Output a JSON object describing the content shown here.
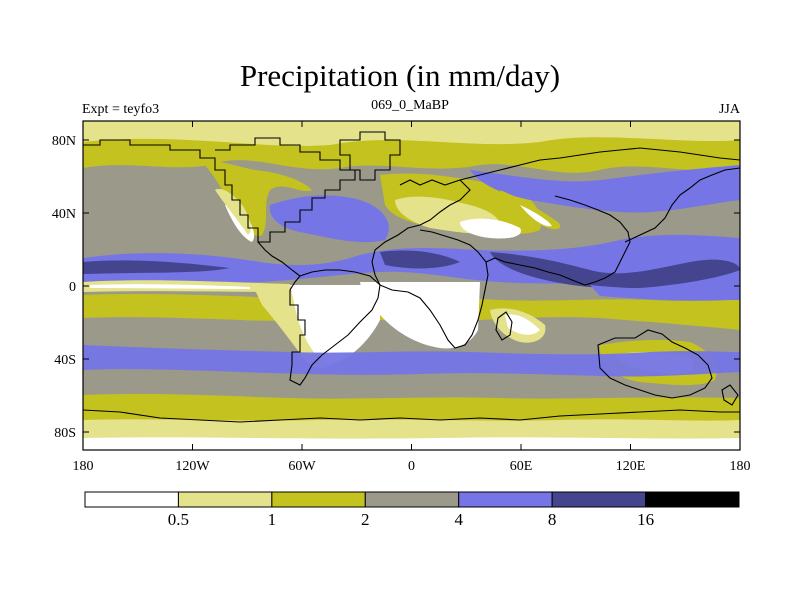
{
  "header": {
    "title": "Precipitation (in mm/day)",
    "left_label": "Expt = teyfo3",
    "center_label": "069_0_MaBP",
    "right_label": "JJA"
  },
  "axes": {
    "lat_ticks": [
      "80N",
      "40N",
      "0",
      "40S",
      "80S"
    ],
    "lon_ticks": [
      "180",
      "120W",
      "60W",
      "0",
      "60E",
      "120E",
      "180"
    ]
  },
  "colorbar": {
    "labels": [
      "0.5",
      "1",
      "2",
      "4",
      "8",
      "16"
    ],
    "colors": [
      "#ffffff",
      "#e5e28c",
      "#c4c21e",
      "#9a998a",
      "#7575e6",
      "#45458f",
      "#000000"
    ]
  },
  "colors": {
    "white": "#ffffff",
    "pale_yellow": "#e5e28c",
    "olive": "#c4c21e",
    "gray": "#9a998a",
    "blue": "#7575e6",
    "dark_blue": "#45458f",
    "black": "#000000"
  }
}
